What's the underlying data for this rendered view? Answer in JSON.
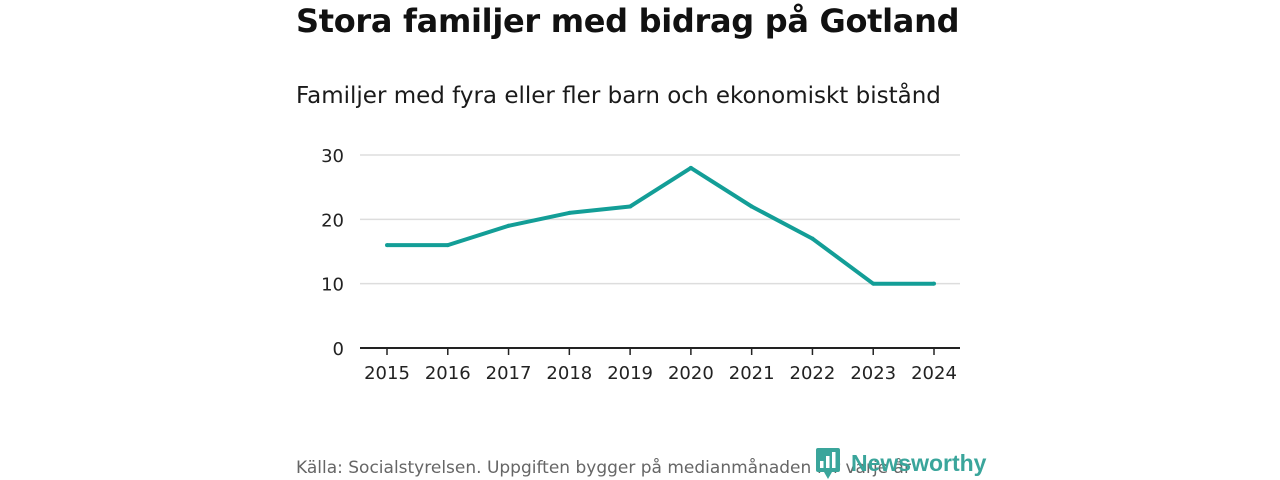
{
  "header": {
    "title": "Stora familjer med bidrag på Gotland",
    "subtitle": "Familjer med fyra eller fler barn och ekonomiskt bistånd"
  },
  "chart_data": {
    "type": "line",
    "title": "Stora familjer med bidrag på Gotland",
    "subtitle": "Familjer med fyra eller fler barn och ekonomiskt bistånd",
    "categories": [
      "2015",
      "2016",
      "2017",
      "2018",
      "2019",
      "2020",
      "2021",
      "2022",
      "2023",
      "2024"
    ],
    "series": [
      {
        "name": "Familjer med fyra eller fler barn och ekonomiskt bistånd",
        "values": [
          16,
          16,
          19,
          21,
          22,
          28,
          22,
          17,
          10,
          10
        ]
      }
    ],
    "yticks": [
      "0",
      "10",
      "20",
      "30"
    ],
    "ylim": [
      0,
      30
    ],
    "xlabel": "",
    "ylabel": "",
    "grid": true,
    "line_color": "#139e97",
    "grid_color": "#dddddd",
    "axis_color": "#222222"
  },
  "footer": {
    "source": "Källa: Socialstyrelsen. Uppgiften bygger på medianmånaden för varje år"
  },
  "brand": {
    "name": "Newsworthy",
    "color": "#3aa59b",
    "icon": "newsworthy-logo-icon"
  }
}
